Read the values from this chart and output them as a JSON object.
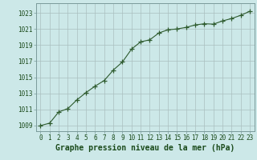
{
  "x": [
    0,
    1,
    2,
    3,
    4,
    5,
    6,
    7,
    8,
    9,
    10,
    11,
    12,
    13,
    14,
    15,
    16,
    17,
    18,
    19,
    20,
    21,
    22,
    23
  ],
  "y": [
    1009.0,
    1009.3,
    1010.7,
    1011.1,
    1012.2,
    1013.1,
    1013.9,
    1014.6,
    1015.9,
    1016.9,
    1018.5,
    1019.4,
    1019.65,
    1020.5,
    1020.9,
    1021.0,
    1021.2,
    1021.5,
    1021.65,
    1021.6,
    1022.0,
    1022.3,
    1022.7,
    1023.2
  ],
  "line_color": "#2d5a2d",
  "marker": "+",
  "markersize": 4,
  "linewidth": 0.8,
  "bg_color": "#cce8e8",
  "grid_color": "#aabfbf",
  "xlabel": "Graphe pression niveau de la mer (hPa)",
  "xlabel_fontsize": 7,
  "xlabel_color": "#1a4a1a",
  "ytick_labels": [
    "1009",
    "1011",
    "1013",
    "1015",
    "1017",
    "1019",
    "1021",
    "1023"
  ],
  "ytick_values": [
    1009,
    1011,
    1013,
    1015,
    1017,
    1019,
    1021,
    1023
  ],
  "xtick_labels": [
    "0",
    "1",
    "2",
    "3",
    "4",
    "5",
    "6",
    "7",
    "8",
    "9",
    "10",
    "11",
    "12",
    "13",
    "14",
    "15",
    "16",
    "17",
    "18",
    "19",
    "20",
    "21",
    "22",
    "23"
  ],
  "ylim": [
    1008.3,
    1024.2
  ],
  "xlim": [
    -0.5,
    23.5
  ],
  "tick_fontsize": 5.5,
  "tick_color": "#1a4a1a"
}
